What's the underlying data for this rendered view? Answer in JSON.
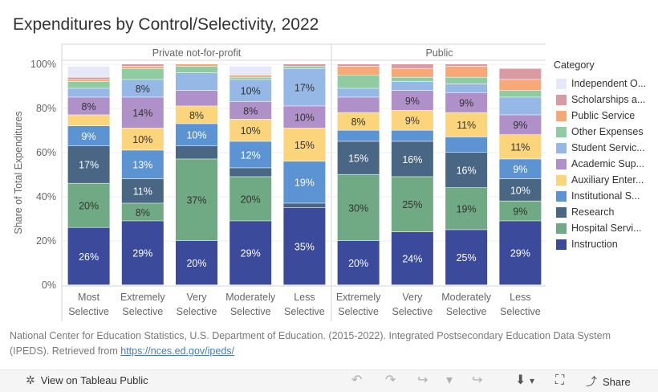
{
  "title": "Expenditures by Control/Selectivity, 2022",
  "chart_data": {
    "type": "bar",
    "stacked": true,
    "title": "Expenditures by Control/Selectivity, 2022",
    "ylabel": "Share of Total Expenditures",
    "ylim": [
      0,
      1
    ],
    "yticks": [
      "0%",
      "20%",
      "40%",
      "60%",
      "80%",
      "100%"
    ],
    "panels": [
      {
        "name": "Private not-for-profit",
        "categories": [
          [
            "Most",
            "Selective"
          ],
          [
            "Extremely",
            "Selective"
          ],
          [
            "Very",
            "Selective"
          ],
          [
            "Moderately",
            "Selective"
          ],
          [
            "Less",
            "Selective"
          ]
        ]
      },
      {
        "name": "Public",
        "categories": [
          [
            "Extremely",
            "Selective"
          ],
          [
            "Very",
            "Selective"
          ],
          [
            "Moderately",
            "Selective"
          ],
          [
            "Less",
            "Selective"
          ]
        ]
      }
    ],
    "series": [
      {
        "name": "Instruction",
        "color": "#3b4a9a",
        "text_color": "#ffffff",
        "values": [
          0.26,
          0.29,
          0.2,
          0.29,
          0.35,
          0.2,
          0.24,
          0.25,
          0.29
        ]
      },
      {
        "name": "Hospital Servi...",
        "color": "#6faa84",
        "text_color": "#333333",
        "values": [
          0.2,
          0.08,
          0.37,
          0.2,
          0.0,
          0.3,
          0.25,
          0.19,
          0.09
        ]
      },
      {
        "name": "Research",
        "color": "#4a6685",
        "text_color": "#ffffff",
        "values": [
          0.17,
          0.11,
          0.06,
          0.04,
          0.02,
          0.15,
          0.16,
          0.16,
          0.1
        ]
      },
      {
        "name": "Institutional S...",
        "color": "#5b93d3",
        "text_color": "#ffffff",
        "values": [
          0.09,
          0.13,
          0.1,
          0.12,
          0.19,
          0.05,
          0.05,
          0.07,
          0.09
        ]
      },
      {
        "name": "Auxiliary Enter...",
        "color": "#fbd47c",
        "text_color": "#333333",
        "values": [
          0.05,
          0.1,
          0.08,
          0.1,
          0.15,
          0.08,
          0.09,
          0.11,
          0.11
        ]
      },
      {
        "name": "Academic Sup...",
        "color": "#b090c8",
        "text_color": "#333333",
        "values": [
          0.08,
          0.14,
          0.07,
          0.08,
          0.1,
          0.07,
          0.09,
          0.09,
          0.09
        ]
      },
      {
        "name": "Student Servic...",
        "color": "#95b8e6",
        "text_color": "#333333",
        "values": [
          0.04,
          0.08,
          0.08,
          0.1,
          0.17,
          0.04,
          0.04,
          0.04,
          0.08
        ]
      },
      {
        "name": "Other Expenses",
        "color": "#8fcca2",
        "text_color": "#333333",
        "values": [
          0.03,
          0.05,
          0.03,
          0.01,
          0.01,
          0.06,
          0.02,
          0.03,
          0.03
        ]
      },
      {
        "name": "Public Service",
        "color": "#f7a877",
        "text_color": "#333333",
        "values": [
          0.01,
          0.01,
          0.01,
          0.01,
          0.0,
          0.04,
          0.04,
          0.05,
          0.05
        ]
      },
      {
        "name": "Scholarships a...",
        "color": "#d99aa3",
        "text_color": "#333333",
        "values": [
          0.01,
          0.01,
          0.0,
          0.0,
          0.01,
          0.01,
          0.02,
          0.01,
          0.05
        ]
      },
      {
        "name": "Independent O...",
        "color": "#e5e8f7",
        "text_color": "#333333",
        "values": [
          0.05,
          0.0,
          0.0,
          0.04,
          0.0,
          0.0,
          0.0,
          0.0,
          0.0
        ]
      }
    ],
    "data_labels": [
      [
        "26%",
        "20%",
        "17%",
        "9%",
        "",
        "8%",
        "",
        "",
        "",
        "",
        ""
      ],
      [
        "29%",
        "8%",
        "11%",
        "13%",
        "10%",
        "14%",
        "8%",
        "",
        "",
        "",
        ""
      ],
      [
        "20%",
        "37%",
        "",
        "10%",
        "8%",
        "",
        "",
        "",
        "",
        "",
        ""
      ],
      [
        "29%",
        "20%",
        "",
        "12%",
        "10%",
        "8%",
        "10%",
        "",
        "",
        "",
        ""
      ],
      [
        "35%",
        "",
        "",
        "19%",
        "15%",
        "10%",
        "17%",
        "",
        "",
        "",
        ""
      ],
      [
        "20%",
        "30%",
        "15%",
        "",
        "8%",
        "",
        "",
        "",
        "",
        "",
        ""
      ],
      [
        "24%",
        "25%",
        "16%",
        "",
        "9%",
        "9%",
        "",
        "",
        "",
        "",
        ""
      ],
      [
        "25%",
        "19%",
        "16%",
        "",
        "11%",
        "9%",
        "",
        "",
        "",
        "",
        ""
      ],
      [
        "29%",
        "9%",
        "10%",
        "9%",
        "11%",
        "9%",
        "",
        "",
        "",
        "",
        ""
      ]
    ],
    "legend": {
      "title": "Category",
      "position": "right",
      "items": [
        {
          "name": "Independent O...",
          "color": "#e5e8f7"
        },
        {
          "name": "Scholarships a...",
          "color": "#d99aa3"
        },
        {
          "name": "Public Service",
          "color": "#f7a877"
        },
        {
          "name": "Other Expenses",
          "color": "#8fcca2"
        },
        {
          "name": "Student Servic...",
          "color": "#95b8e6"
        },
        {
          "name": "Academic Sup...",
          "color": "#b090c8"
        },
        {
          "name": "Auxiliary Enter...",
          "color": "#fbd47c"
        },
        {
          "name": "Institutional S...",
          "color": "#5b93d3"
        },
        {
          "name": "Research",
          "color": "#4a6685"
        },
        {
          "name": "Hospital Servi...",
          "color": "#6faa84"
        },
        {
          "name": "Instruction",
          "color": "#3b4a9a"
        }
      ]
    }
  },
  "footer": {
    "text": "National Center for Education Statistics, U.S. Department of Education. (2015-2022). Integrated Postsecondary Education Data System (IPEDS). Retrieved from",
    "link": "https://nces.ed.gov/ipeds/"
  },
  "toolbar": {
    "view_label": "View on Tableau Public",
    "share_label": "Share",
    "icons": {
      "tableau": "✲",
      "undo": "↶",
      "redo": "↷",
      "revert": "↪",
      "revert_menu": "▾",
      "download": "⬇",
      "download_menu": "▾",
      "fullscreen": "⛶",
      "share": "⤴"
    }
  }
}
